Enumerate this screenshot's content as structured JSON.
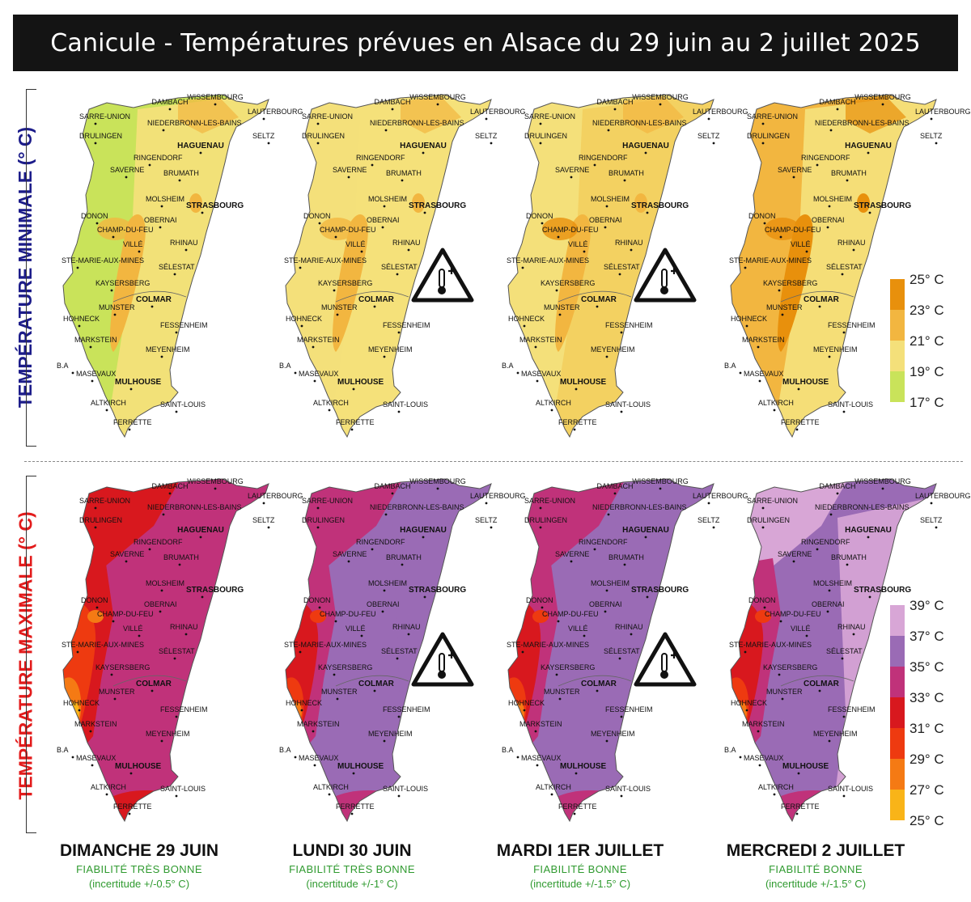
{
  "title": "Canicule - Températures prévues en Alsace du 29 juin au 2 juillet 2025",
  "side_labels": {
    "min": "TEMPÉRATURE MINIMALE (° C)",
    "max": "TEMPÉRATURE MAXIMALE (° C)"
  },
  "cities": [
    {
      "name": "WISSEMBOURG",
      "big": false
    },
    {
      "name": "DAMBACH",
      "big": false
    },
    {
      "name": "LAUTERBOURG",
      "big": false
    },
    {
      "name": "SARRE-UNION",
      "big": false
    },
    {
      "name": "NIEDERBRONN-LES-BAINS",
      "big": false
    },
    {
      "name": "DRULINGEN",
      "big": false
    },
    {
      "name": "HAGUENAU",
      "big": true
    },
    {
      "name": "SELTZ",
      "big": false
    },
    {
      "name": "RINGENDORF",
      "big": false
    },
    {
      "name": "SAVERNE",
      "big": false
    },
    {
      "name": "BRUMATH",
      "big": false
    },
    {
      "name": "MOLSHEIM",
      "big": false
    },
    {
      "name": "STRASBOURG",
      "big": true
    },
    {
      "name": "DONON",
      "big": false
    },
    {
      "name": "OBERNAI",
      "big": false
    },
    {
      "name": "CHAMP-DU-FEU",
      "big": false
    },
    {
      "name": "VILLÉ",
      "big": false
    },
    {
      "name": "RHINAU",
      "big": false
    },
    {
      "name": "STE-MARIE-AUX-MINES",
      "big": false
    },
    {
      "name": "SÉLESTAT",
      "big": false
    },
    {
      "name": "KAYSERSBERG",
      "big": false
    },
    {
      "name": "COLMAR",
      "big": true
    },
    {
      "name": "MUNSTER",
      "big": false
    },
    {
      "name": "HOHNECK",
      "big": false
    },
    {
      "name": "FESSENHEIM",
      "big": false
    },
    {
      "name": "MARKSTEIN",
      "big": false
    },
    {
      "name": "MEYENHEIM",
      "big": false
    },
    {
      "name": "B.A",
      "big": false
    },
    {
      "name": "MASEVAUX",
      "big": false
    },
    {
      "name": "MULHOUSE",
      "big": true
    },
    {
      "name": "ALTKIRCH",
      "big": false
    },
    {
      "name": "SAINT-LOUIS",
      "big": false
    },
    {
      "name": "FERRETTE",
      "big": false
    }
  ],
  "legend_min": {
    "labels": [
      "25° C",
      "23° C",
      "21° C",
      "19° C",
      "17° C"
    ],
    "colors": [
      "#e8900c",
      "#f2b640",
      "#f4e07a",
      "#c9e35a"
    ]
  },
  "legend_max": {
    "labels": [
      "39° C",
      "37° C",
      "35° C",
      "33° C",
      "31° C",
      "29° C",
      "27° C",
      "25° C"
    ],
    "colors": [
      "#d8a6d6",
      "#9a6bb5",
      "#c0327a",
      "#d8181e",
      "#ee3a10",
      "#f57a14",
      "#f9b418"
    ]
  },
  "days": [
    {
      "name": "DIMANCHE 29 JUIN",
      "reliability": "FIABILITÉ TRÈS BONNE",
      "uncertainty": "(incertitude +/-0.5° C)",
      "min_colors": {
        "base": "#c9e35a",
        "mid": "#f4e07a",
        "hot": "#f2b640",
        "peak": "#f2b640"
      },
      "max_colors": {
        "base": "#c0327a",
        "north": "#d8181e",
        "east": "#c0327a",
        "south": "#d8181e",
        "v1": "#d8181e",
        "v2": "#ee3a10",
        "v3": "#f57a14",
        "v4": "#f9b418"
      },
      "warning": false
    },
    {
      "name": "LUNDI 30 JUIN",
      "reliability": "FIABILITÉ TRÈS BONNE",
      "uncertainty": "(incertitude +/-1° C)",
      "min_colors": {
        "base": "#f4e07a",
        "mid": "#f4e07a",
        "hot": "#f2b640",
        "peak": "#f2b640"
      },
      "max_colors": {
        "base": "#9a6bb5",
        "north": "#c0327a",
        "east": "#9a6bb5",
        "south": "#c0327a",
        "v1": "#c0327a",
        "v2": "#d8181e",
        "v3": "#ee3a10",
        "v4": "#f57a14"
      },
      "warning": true
    },
    {
      "name": "MARDI 1ER JUILLET",
      "reliability": "FIABILITÉ BONNE",
      "uncertainty": "(incertitude +/-1.5° C)",
      "min_colors": {
        "base": "#f4e07a",
        "mid": "#f2d060",
        "hot": "#f2b640",
        "peak": "#e8900c"
      },
      "max_colors": {
        "base": "#9a6bb5",
        "north": "#c0327a",
        "east": "#9a6bb5",
        "south": "#c0327a",
        "v1": "#c0327a",
        "v2": "#d8181e",
        "v3": "#ee3a10",
        "v4": "#f57a14"
      },
      "warning": true
    },
    {
      "name": "MERCREDI 2 JUILLET",
      "reliability": "FIABILITÉ BONNE",
      "uncertainty": "(incertitude +/-1.5° C)",
      "min_colors": {
        "base": "#f2b640",
        "mid": "#f4e07a",
        "hot": "#e8900c",
        "peak": "#e8900c"
      },
      "max_colors": {
        "base": "#9a6bb5",
        "north": "#d8a6d6",
        "east": "#d8a6d6",
        "south": "#c0327a",
        "v1": "#c0327a",
        "v2": "#d8181e",
        "v3": "#ee3a10",
        "v4": "#f57a14"
      },
      "warning": false
    }
  ]
}
